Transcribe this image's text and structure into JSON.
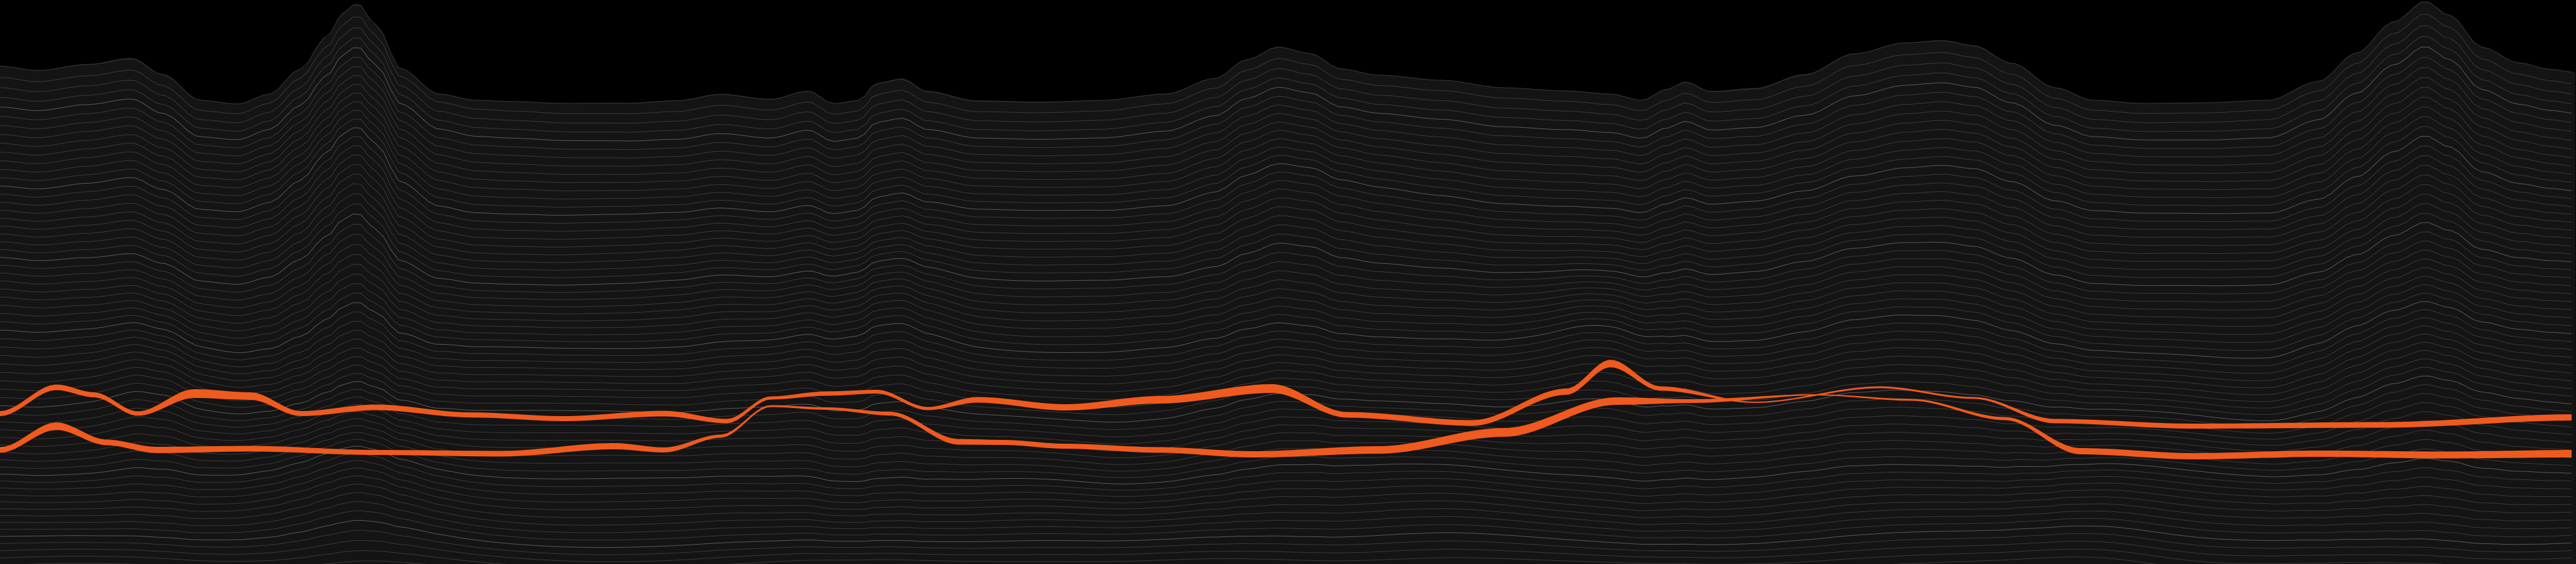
{
  "artwork": {
    "kind": "topographic contour line landscape",
    "colors": {
      "sky": "#000000",
      "terrain": "#141414",
      "contour_line": "#3a3a3a",
      "contour_line_highlight": "#5a5a5a",
      "accent_ribbon": "#f05a1e"
    },
    "contour_line_count": 64,
    "accent_ribbon_count": 2
  }
}
